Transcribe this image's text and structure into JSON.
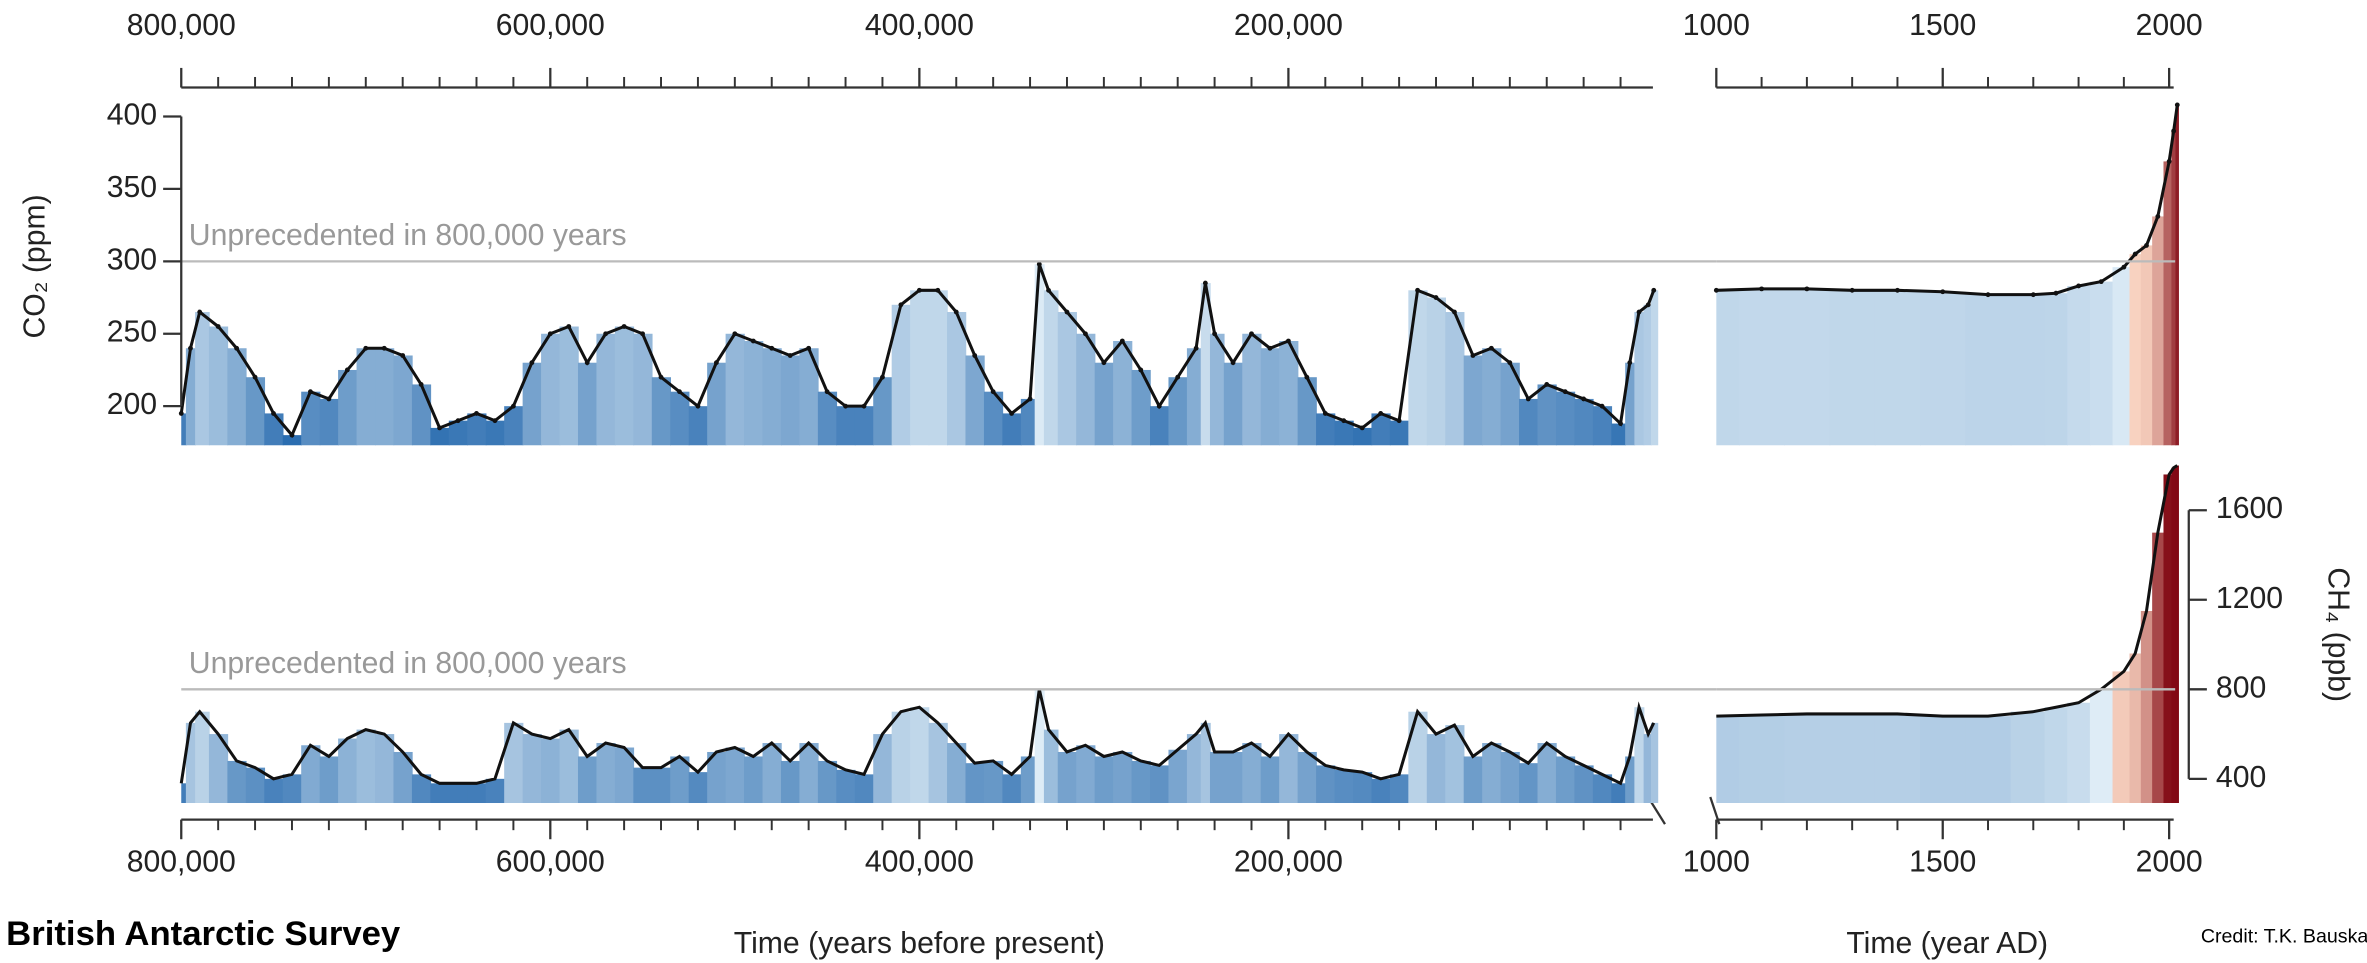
{
  "chart_data": [
    {
      "type": "line",
      "x": [
        800000,
        795000,
        790000,
        780000,
        770000,
        760000,
        750000,
        740000,
        730000,
        720000,
        710000,
        700000,
        690000,
        680000,
        670000,
        660000,
        650000,
        640000,
        630000,
        620000,
        610000,
        600000,
        590000,
        580000,
        570000,
        560000,
        550000,
        540000,
        530000,
        520000,
        510000,
        500000,
        490000,
        480000,
        470000,
        460000,
        450000,
        440000,
        430000,
        420000,
        410000,
        400000,
        390000,
        380000,
        370000,
        360000,
        350000,
        340000,
        335000,
        330000,
        320000,
        310000,
        300000,
        290000,
        280000,
        270000,
        260000,
        250000,
        245000,
        240000,
        230000,
        220000,
        210000,
        200000,
        190000,
        180000,
        170000,
        160000,
        150000,
        140000,
        130000,
        120000,
        110000,
        100000,
        90000,
        80000,
        70000,
        60000,
        50000,
        40000,
        30000,
        20000,
        15000,
        10000,
        5000,
        2000
      ],
      "values": [
        195,
        240,
        265,
        255,
        240,
        220,
        195,
        180,
        210,
        205,
        225,
        240,
        240,
        235,
        215,
        185,
        190,
        195,
        190,
        200,
        230,
        250,
        255,
        230,
        250,
        255,
        250,
        220,
        210,
        200,
        230,
        250,
        245,
        240,
        235,
        240,
        210,
        200,
        200,
        220,
        270,
        280,
        280,
        265,
        235,
        210,
        195,
        205,
        298,
        280,
        265,
        250,
        230,
        245,
        225,
        200,
        220,
        240,
        285,
        250,
        230,
        250,
        240,
        245,
        220,
        195,
        190,
        185,
        195,
        190,
        280,
        275,
        265,
        235,
        240,
        230,
        205,
        215,
        210,
        205,
        200,
        188,
        230,
        265,
        270,
        280
      ],
      "color": "#111111",
      "xlim": [
        800000,
        0
      ],
      "ylim": [
        173,
        420
      ],
      "xticks": [
        {
          "value": 800000,
          "label": "800,000"
        },
        {
          "value": 600000,
          "label": "600,000"
        },
        {
          "value": 400000,
          "label": "400,000"
        },
        {
          "value": 200000,
          "label": "200,000"
        }
      ],
      "xminorticks": [
        780000,
        760000,
        740000,
        720000,
        700000,
        680000,
        660000,
        640000,
        620000,
        580000,
        560000,
        540000,
        520000,
        500000,
        480000,
        460000,
        440000,
        420000,
        380000,
        360000,
        340000,
        320000,
        300000,
        280000,
        260000,
        240000,
        220000,
        180000,
        160000,
        140000,
        120000,
        100000,
        80000,
        60000,
        40000,
        20000
      ],
      "xaxis": "top",
      "yaxis": "left",
      "yticks": [
        200,
        250,
        300,
        350,
        400
      ],
      "ylabel": "CO₂ (ppm)",
      "threshold": 300,
      "annotation": "Unprecedented in 800,000 years"
    },
    {
      "type": "line",
      "x": [
        1000,
        1100,
        1200,
        1300,
        1400,
        1500,
        1600,
        1700,
        1750,
        1800,
        1850,
        1900,
        1925,
        1950,
        1975,
        2000,
        2010,
        2018
      ],
      "values": [
        280,
        281,
        281,
        280,
        280,
        279,
        277,
        277,
        278,
        283,
        286,
        296,
        305,
        311,
        331,
        369,
        390,
        408
      ],
      "color": "#111111",
      "xlim": [
        1000,
        2020
      ],
      "ylim": [
        173,
        420
      ],
      "xticks": [
        1000,
        1500,
        2000
      ],
      "xminorticks": [
        1100,
        1200,
        1300,
        1400,
        1600,
        1700,
        1800,
        1900
      ],
      "xaxis": "top",
      "threshold": 300
    },
    {
      "type": "line",
      "x": [
        800000,
        795000,
        790000,
        780000,
        770000,
        760000,
        750000,
        740000,
        730000,
        720000,
        710000,
        700000,
        690000,
        680000,
        670000,
        660000,
        650000,
        640000,
        630000,
        620000,
        610000,
        600000,
        590000,
        580000,
        570000,
        560000,
        550000,
        540000,
        530000,
        520000,
        510000,
        500000,
        490000,
        480000,
        470000,
        460000,
        450000,
        440000,
        430000,
        420000,
        410000,
        400000,
        390000,
        380000,
        370000,
        360000,
        350000,
        340000,
        335000,
        330000,
        320000,
        310000,
        300000,
        290000,
        280000,
        270000,
        260000,
        250000,
        245000,
        240000,
        230000,
        220000,
        210000,
        200000,
        190000,
        180000,
        170000,
        160000,
        150000,
        140000,
        130000,
        120000,
        110000,
        100000,
        90000,
        80000,
        70000,
        60000,
        50000,
        40000,
        30000,
        20000,
        15000,
        10000,
        5000,
        2000
      ],
      "values": [
        380,
        650,
        700,
        600,
        480,
        450,
        400,
        420,
        550,
        500,
        580,
        620,
        600,
        520,
        420,
        380,
        380,
        380,
        400,
        650,
        600,
        580,
        620,
        500,
        560,
        540,
        450,
        450,
        500,
        430,
        520,
        540,
        500,
        560,
        480,
        560,
        480,
        440,
        420,
        600,
        700,
        720,
        650,
        560,
        470,
        480,
        420,
        500,
        800,
        620,
        520,
        550,
        500,
        520,
        480,
        460,
        530,
        600,
        650,
        520,
        520,
        560,
        500,
        600,
        520,
        460,
        440,
        430,
        400,
        420,
        700,
        600,
        640,
        500,
        560,
        520,
        470,
        560,
        500,
        460,
        420,
        380,
        500,
        720,
        600,
        650
      ],
      "color": "#111111",
      "xlim": [
        800000,
        0
      ],
      "ylim": [
        292,
        1796
      ],
      "xticks": [
        {
          "value": 800000,
          "label": "800,000"
        },
        {
          "value": 600000,
          "label": "600,000"
        },
        {
          "value": 400000,
          "label": "400,000"
        },
        {
          "value": 200000,
          "label": "200,000"
        }
      ],
      "xminorticks": [
        780000,
        760000,
        740000,
        720000,
        700000,
        680000,
        660000,
        640000,
        620000,
        580000,
        560000,
        540000,
        520000,
        500000,
        480000,
        460000,
        440000,
        420000,
        380000,
        360000,
        340000,
        320000,
        300000,
        280000,
        260000,
        240000,
        220000,
        180000,
        160000,
        140000,
        120000,
        100000,
        80000,
        60000,
        40000,
        20000
      ],
      "xaxis": "bottom",
      "xlabel": "Time (years before present)",
      "threshold": 800,
      "annotation": "Unprecedented in 800,000 years"
    },
    {
      "type": "line",
      "x": [
        1000,
        1100,
        1200,
        1300,
        1400,
        1500,
        1600,
        1700,
        1750,
        1800,
        1850,
        1900,
        1925,
        1950,
        1975,
        2000,
        2010,
        2018
      ],
      "values": [
        680,
        685,
        690,
        690,
        690,
        680,
        680,
        700,
        720,
        740,
        800,
        880,
        960,
        1150,
        1500,
        1760,
        1790,
        1800
      ],
      "color": "#111111",
      "xlim": [
        1000,
        2020
      ],
      "ylim": [
        292,
        1796
      ],
      "xticks": [
        1000,
        1500,
        2000
      ],
      "xminorticks": [
        1100,
        1200,
        1300,
        1400,
        1600,
        1700,
        1800,
        1900
      ],
      "xaxis": "bottom",
      "xlabel": "Time (year AD)",
      "yaxis": "right",
      "yticks": [
        400,
        800,
        1200,
        1600
      ],
      "ylabel": "CH₄ (ppb)",
      "threshold": 800
    }
  ],
  "footer": {
    "source": "British Antarctic Survey",
    "credit": "Credit: T.K. Bauska"
  }
}
